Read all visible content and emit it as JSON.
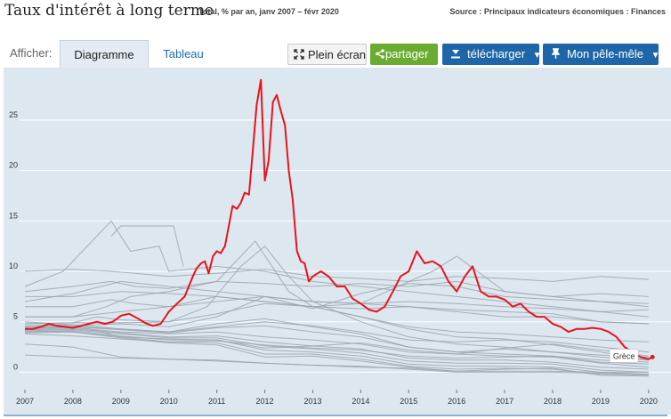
{
  "header": {
    "title": "Taux d'intérêt à long terme",
    "subtitle": "Total, % par an, janv 2007 – févr 2020",
    "source": "Source : Principaux indicateurs économiques : Finances"
  },
  "toolbar": {
    "afficher_label": "Afficher:",
    "tab_chart": "Diagramme",
    "tab_table": "Tableau",
    "fullscreen_label": "Plein écran",
    "share_label": "partager",
    "download_label": "télécharger",
    "dashboard_label": "Mon pêle-mêle",
    "icons": {
      "fullscreen": "expand-icon",
      "share": "share-icon",
      "download": "download-icon",
      "dashboard": "pin-icon",
      "dropdown": "caret-down-icon"
    }
  },
  "colors": {
    "highlight": "#e8141c",
    "others": "#9aa5ae",
    "background": "#dde7f0",
    "accent_blue": "#1f66a8",
    "accent_green": "#6aac31"
  },
  "chart_data": {
    "type": "line",
    "title": "Taux d'intérêt à long terme",
    "xlabel": "",
    "ylabel": "",
    "xlim": [
      2007,
      2020.17
    ],
    "ylim": [
      -1.2,
      29.5
    ],
    "x_ticks": [
      "2007",
      "2008",
      "2009",
      "2010",
      "2011",
      "2012",
      "2013",
      "2014",
      "2015",
      "2016",
      "2017",
      "2018",
      "2019",
      "2020"
    ],
    "y_ticks": [
      "0",
      "5",
      "10",
      "15",
      "20",
      "25"
    ],
    "grid": true,
    "legend": "none",
    "highlight": {
      "name": "Grèce",
      "label": "Grèce",
      "x": [
        2007.0,
        2007.17,
        2007.33,
        2007.5,
        2007.67,
        2007.83,
        2008.0,
        2008.17,
        2008.33,
        2008.5,
        2008.67,
        2008.83,
        2009.0,
        2009.17,
        2009.33,
        2009.5,
        2009.67,
        2009.83,
        2010.0,
        2010.17,
        2010.33,
        2010.5,
        2010.58,
        2010.67,
        2010.75,
        2010.83,
        2010.92,
        2011.0,
        2011.08,
        2011.17,
        2011.25,
        2011.33,
        2011.42,
        2011.5,
        2011.58,
        2011.67,
        2011.75,
        2011.83,
        2011.92,
        2012.0,
        2012.08,
        2012.17,
        2012.25,
        2012.33,
        2012.42,
        2012.5,
        2012.58,
        2012.67,
        2012.75,
        2012.83,
        2012.92,
        2013.0,
        2013.17,
        2013.33,
        2013.5,
        2013.67,
        2013.83,
        2014.0,
        2014.17,
        2014.33,
        2014.5,
        2014.67,
        2014.83,
        2015.0,
        2015.17,
        2015.33,
        2015.5,
        2015.67,
        2015.83,
        2016.0,
        2016.17,
        2016.33,
        2016.5,
        2016.67,
        2016.83,
        2017.0,
        2017.17,
        2017.33,
        2017.5,
        2017.67,
        2017.83,
        2018.0,
        2018.17,
        2018.33,
        2018.5,
        2018.67,
        2018.83,
        2019.0,
        2019.17,
        2019.33,
        2019.5,
        2019.67,
        2019.83,
        2020.0,
        2020.08
      ],
      "y": [
        4.3,
        4.3,
        4.5,
        4.8,
        4.6,
        4.5,
        4.4,
        4.6,
        4.8,
        5.0,
        4.8,
        5.0,
        5.6,
        5.8,
        5.4,
        4.9,
        4.6,
        4.8,
        6.0,
        6.8,
        7.5,
        9.5,
        10.3,
        10.8,
        11.0,
        9.8,
        11.5,
        12.0,
        11.8,
        12.5,
        14.5,
        16.5,
        16.2,
        16.8,
        17.8,
        17.6,
        22.0,
        26.5,
        29.0,
        19.0,
        21.0,
        26.8,
        27.5,
        26.0,
        24.5,
        20.0,
        17.2,
        12.0,
        11.0,
        10.8,
        9.0,
        9.5,
        10.0,
        9.5,
        8.5,
        8.5,
        7.3,
        6.8,
        6.2,
        6.0,
        6.5,
        8.0,
        9.5,
        10.0,
        12.0,
        10.8,
        11.0,
        10.5,
        9.0,
        8.0,
        9.5,
        10.5,
        8.0,
        7.5,
        7.5,
        7.2,
        6.5,
        6.8,
        6.0,
        5.5,
        5.5,
        4.8,
        4.5,
        4.0,
        4.3,
        4.3,
        4.4,
        4.3,
        4.0,
        3.5,
        2.5,
        2.0,
        1.5,
        1.3,
        1.5
      ]
    },
    "series": [
      {
        "x": [
          2007,
          2008,
          2008.8,
          2009.3,
          2010,
          2011,
          2012,
          2013,
          2014,
          2015,
          2016,
          2017,
          2018,
          2019,
          2020
        ],
        "y": [
          10.0,
          10.2,
          10.0,
          9.8,
          9.5,
          9.8,
          10.2,
          9.5,
          9.3,
          9.0,
          9.5,
          9.3,
          9.0,
          9.5,
          9.2
        ]
      },
      {
        "x": [
          2007,
          2008,
          2008.8,
          2009.3,
          2010,
          2011,
          2012,
          2013,
          2014,
          2015,
          2016,
          2017,
          2018,
          2019,
          2020
        ],
        "y": [
          8.0,
          8.5,
          9.0,
          8.5,
          8.3,
          9.0,
          8.8,
          8.5,
          8.8,
          8.5,
          9.0,
          8.0,
          7.5,
          7.8,
          7.5
        ]
      },
      {
        "x": [
          2007,
          2008,
          2008.8,
          2009.3,
          2010,
          2011,
          2012,
          2013,
          2014,
          2015,
          2016,
          2017,
          2018,
          2019,
          2020
        ],
        "y": [
          6.5,
          6.5,
          7.2,
          6.8,
          6.5,
          7.5,
          7.0,
          6.5,
          6.8,
          7.0,
          6.8,
          6.5,
          6.3,
          6.0,
          6.2
        ]
      },
      {
        "x": [
          2007,
          2008,
          2008.7,
          2009.2,
          2010,
          2011,
          2011.8,
          2012.5,
          2013,
          2014,
          2015,
          2016,
          2017,
          2018,
          2019,
          2020
        ],
        "y": [
          5.5,
          5.5,
          6.5,
          7.5,
          8.0,
          9.0,
          13.0,
          8.0,
          6.5,
          5.5,
          4.5,
          4.0,
          3.8,
          3.5,
          3.2,
          3.0
        ]
      },
      {
        "x": [
          2007,
          2008,
          2008.5,
          2009,
          2010,
          2010.8,
          2011.5,
          2012,
          2012.5,
          2013,
          2014,
          2015,
          2016,
          2017,
          2018,
          2019,
          2020
        ],
        "y": [
          4.8,
          4.9,
          5.5,
          5.2,
          5.0,
          6.5,
          10.5,
          12.5,
          9.5,
          7.0,
          5.0,
          3.5,
          2.8,
          2.5,
          2.0,
          1.5,
          1.2
        ]
      },
      {
        "x": [
          2007,
          2007.8,
          2008.8,
          2009.2,
          2009.8,
          2010,
          2011,
          2012,
          2013,
          2014,
          2015,
          2016,
          2017,
          2018,
          2019,
          2020
        ],
        "y": [
          8.5,
          10.0,
          15.0,
          12.0,
          12.5,
          10.0,
          10.5,
          10.0,
          9.0,
          8.5,
          8.0,
          7.5,
          7.0,
          6.5,
          6.0,
          5.5
        ]
      },
      {
        "x": [
          2008.8,
          2009,
          2009.2,
          2009.8,
          2010.1,
          2010.3
        ],
        "y": [
          13.5,
          14.5,
          14.5,
          14.5,
          14.5,
          10.5
        ]
      },
      {
        "x": [
          2007,
          2008,
          2009,
          2010,
          2011,
          2012,
          2013,
          2014,
          2015,
          2015.5,
          2016,
          2017,
          2018,
          2019,
          2020
        ],
        "y": [
          4.5,
          4.6,
          4.8,
          4.5,
          5.5,
          7.5,
          7.0,
          6.8,
          9.0,
          10.0,
          11.5,
          8.0,
          7.5,
          7.0,
          6.8
        ]
      },
      {
        "x": [
          2007,
          2008,
          2009,
          2010,
          2011,
          2012,
          2013,
          2014,
          2015,
          2016,
          2017,
          2018,
          2019,
          2020
        ],
        "y": [
          7.5,
          7.5,
          8.0,
          7.8,
          7.5,
          7.0,
          6.5,
          6.3,
          6.5,
          6.0,
          5.5,
          5.5,
          5.0,
          4.8
        ]
      },
      {
        "x": [
          2007,
          2008,
          2009,
          2010,
          2011,
          2012,
          2013,
          2014,
          2015,
          2016,
          2017,
          2018,
          2019,
          2020
        ],
        "y": [
          4.4,
          4.5,
          4.3,
          4.0,
          4.5,
          5.0,
          4.6,
          4.0,
          3.2,
          3.0,
          3.2,
          3.0,
          2.5,
          2.0
        ]
      },
      {
        "x": [
          2007,
          2008,
          2009,
          2010,
          2011,
          2012,
          2013,
          2014,
          2015,
          2016,
          2017,
          2018,
          2019,
          2020
        ],
        "y": [
          4.3,
          4.4,
          4.0,
          3.8,
          4.0,
          3.5,
          3.2,
          2.8,
          2.0,
          1.8,
          1.6,
          1.5,
          0.9,
          0.5
        ]
      },
      {
        "x": [
          2007,
          2008,
          2009,
          2010,
          2011,
          2012,
          2013,
          2014,
          2015,
          2016,
          2017,
          2018,
          2019,
          2020
        ],
        "y": [
          4.2,
          4.3,
          3.9,
          3.5,
          3.6,
          3.0,
          2.6,
          2.3,
          1.4,
          1.2,
          1.2,
          1.0,
          0.5,
          0.3
        ]
      },
      {
        "x": [
          2007,
          2008,
          2009,
          2010,
          2011,
          2012,
          2013,
          2014,
          2015,
          2016,
          2017,
          2018,
          2019,
          2020
        ],
        "y": [
          4.1,
          4.2,
          3.8,
          3.4,
          3.4,
          2.6,
          2.3,
          1.9,
          1.1,
          0.9,
          0.9,
          0.8,
          0.2,
          0.0
        ]
      },
      {
        "x": [
          2007,
          2008,
          2009,
          2010,
          2011,
          2012,
          2013,
          2014,
          2015,
          2016,
          2017,
          2018,
          2019,
          2020
        ],
        "y": [
          4.0,
          4.1,
          3.6,
          3.2,
          3.2,
          2.2,
          2.0,
          1.6,
          0.8,
          0.6,
          0.6,
          0.5,
          0.0,
          -0.2
        ]
      },
      {
        "x": [
          2007,
          2008,
          2009,
          2010,
          2011,
          2012,
          2013,
          2014,
          2015,
          2016,
          2017,
          2018,
          2019,
          2020
        ],
        "y": [
          4.1,
          4.0,
          3.5,
          3.0,
          2.9,
          1.8,
          1.8,
          1.3,
          0.6,
          0.3,
          0.4,
          0.3,
          -0.2,
          -0.3
        ]
      },
      {
        "x": [
          2007,
          2008,
          2009,
          2010,
          2011,
          2012,
          2013,
          2014,
          2015,
          2016,
          2017,
          2018,
          2019,
          2020
        ],
        "y": [
          3.9,
          4.0,
          3.4,
          2.9,
          2.7,
          1.5,
          1.6,
          1.1,
          0.5,
          0.1,
          0.3,
          0.4,
          -0.3,
          -0.4
        ]
      },
      {
        "x": [
          2007,
          2008,
          2009,
          2010,
          2011,
          2012,
          2013,
          2014,
          2015,
          2016,
          2017,
          2018,
          2019,
          2020
        ],
        "y": [
          4.3,
          4.5,
          4.2,
          3.9,
          4.4,
          4.6,
          4.0,
          3.5,
          2.5,
          2.0,
          2.3,
          2.0,
          1.7,
          1.5
        ]
      },
      {
        "x": [
          2007,
          2008,
          2009,
          2010,
          2011,
          2012,
          2013,
          2014,
          2015,
          2016,
          2017,
          2018,
          2019,
          2020
        ],
        "y": [
          4.6,
          4.7,
          4.3,
          4.0,
          4.8,
          5.3,
          4.5,
          3.8,
          2.5,
          2.0,
          1.8,
          1.6,
          1.0,
          0.8
        ]
      },
      {
        "x": [
          2007,
          2008,
          2009,
          2010,
          2011,
          2012,
          2013,
          2014,
          2015,
          2016,
          2017,
          2018,
          2019,
          2020
        ],
        "y": [
          4.8,
          4.9,
          4.9,
          5.0,
          5.8,
          6.8,
          6.5,
          5.5,
          4.3,
          3.5,
          3.3,
          2.7,
          2.0,
          1.2
        ]
      },
      {
        "x": [
          2007,
          2008,
          2009,
          2010,
          2011,
          2012,
          2013,
          2014,
          2015,
          2016,
          2017,
          2018,
          2019,
          2020
        ],
        "y": [
          1.7,
          1.5,
          1.4,
          1.3,
          1.1,
          0.9,
          0.7,
          0.5,
          0.4,
          0.1,
          0.1,
          0.1,
          0.0,
          0.0
        ]
      },
      {
        "x": [
          2007,
          2008,
          2009,
          2010,
          2011,
          2012,
          2013,
          2014,
          2015,
          2016,
          2017,
          2018,
          2019,
          2020
        ],
        "y": [
          2.8,
          2.5,
          1.5,
          1.3,
          1.2,
          0.9,
          0.7,
          0.6,
          0.3,
          0.0,
          0.0,
          0.0,
          -0.1,
          -0.2
        ]
      },
      {
        "x": [
          2007,
          2008,
          2009,
          2010,
          2011,
          2012,
          2013,
          2014,
          2015,
          2016,
          2017,
          2018,
          2019,
          2020
        ],
        "y": [
          5.0,
          4.7,
          3.5,
          3.3,
          3.2,
          2.4,
          2.6,
          2.9,
          2.2,
          1.8,
          2.4,
          2.8,
          2.2,
          1.6
        ]
      },
      {
        "x": [
          2007,
          2008,
          2009,
          2010,
          2011,
          2012,
          2013,
          2014,
          2015,
          2016,
          2017,
          2018,
          2019,
          2020
        ],
        "y": [
          5.5,
          5.5,
          6.0,
          6.5,
          7.0,
          7.5,
          7.0,
          6.8,
          6.5,
          6.2,
          6.0,
          5.8,
          5.0,
          4.8
        ]
      },
      {
        "x": [
          2007,
          2008,
          2009,
          2010,
          2011,
          2012,
          2013,
          2014,
          2015,
          2016,
          2017,
          2018,
          2019,
          2020
        ],
        "y": [
          7.0,
          7.8,
          9.0,
          8.5,
          8.0,
          7.5,
          6.3,
          7.8,
          8.8,
          8.5,
          7.5,
          7.2,
          7.0,
          6.5
        ]
      },
      {
        "x": [
          2007,
          2008,
          2009,
          2010,
          2011,
          2012,
          2013,
          2014,
          2015,
          2016,
          2017,
          2018,
          2019,
          2020
        ],
        "y": [
          3.8,
          3.6,
          3.3,
          3.0,
          3.1,
          2.7,
          2.4,
          2.2,
          1.6,
          1.4,
          1.5,
          1.6,
          1.2,
          1.0
        ]
      }
    ]
  }
}
